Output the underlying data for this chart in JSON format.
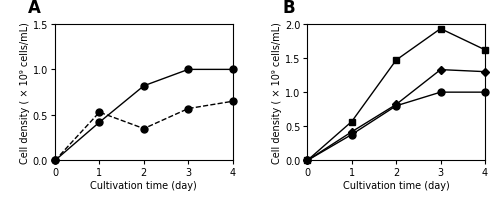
{
  "panel_a": {
    "label": "A",
    "solid_line": {
      "x": [
        0,
        1,
        2,
        3,
        4
      ],
      "y": [
        0.0,
        0.42,
        0.82,
        1.0,
        1.0
      ],
      "marker": "o",
      "linestyle": "-",
      "color": "black",
      "markersize": 5
    },
    "dashed_line": {
      "x": [
        0,
        1,
        2,
        3,
        4
      ],
      "y": [
        0.0,
        0.53,
        0.35,
        0.57,
        0.65
      ],
      "marker": "o",
      "linestyle": "--",
      "color": "black",
      "markersize": 5
    },
    "xlabel": "Cultivation time (day)",
    "ylabel": "Cell density ( × 10⁹ cells/mL)",
    "xlim": [
      0,
      4
    ],
    "ylim": [
      0,
      1.5
    ],
    "yticks": [
      0.0,
      0.5,
      1.0,
      1.5
    ],
    "xticks": [
      0,
      1,
      2,
      3,
      4
    ]
  },
  "panel_b": {
    "label": "B",
    "square_line": {
      "x": [
        0,
        1,
        2,
        3,
        4
      ],
      "y": [
        0.0,
        0.57,
        1.47,
        1.93,
        1.62
      ],
      "marker": "s",
      "linestyle": "-",
      "color": "black",
      "markersize": 5
    },
    "diamond_line": {
      "x": [
        0,
        1,
        2,
        3,
        4
      ],
      "y": [
        0.0,
        0.42,
        0.82,
        1.33,
        1.3
      ],
      "marker": "D",
      "linestyle": "-",
      "color": "black",
      "markersize": 4
    },
    "circle_line": {
      "x": [
        0,
        1,
        2,
        3,
        4
      ],
      "y": [
        0.0,
        0.38,
        0.8,
        1.0,
        1.0
      ],
      "marker": "o",
      "linestyle": "-",
      "color": "black",
      "markersize": 5
    },
    "xlabel": "Cultivation time (day)",
    "ylabel": "Cell density ( × 10⁹ cells/mL)",
    "xlim": [
      0,
      4
    ],
    "ylim": [
      0,
      2.0
    ],
    "yticks": [
      0.0,
      0.5,
      1.0,
      1.5,
      2.0
    ],
    "xticks": [
      0,
      1,
      2,
      3,
      4
    ]
  },
  "background_color": "white",
  "figure_size": [
    5.0,
    2.07
  ],
  "dpi": 100,
  "tick_fontsize": 7,
  "label_fontsize": 7,
  "panel_label_fontsize": 12,
  "linewidth": 1.0
}
